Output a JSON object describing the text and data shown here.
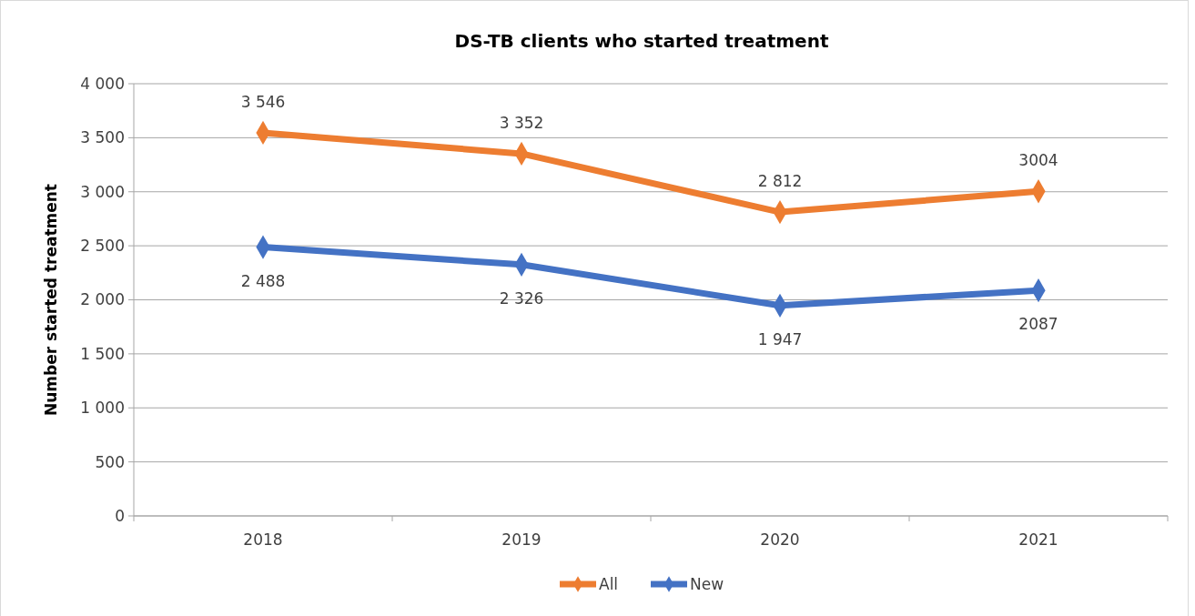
{
  "chart_data": {
    "type": "line",
    "title": "DS-TB clients who started treatment",
    "ylabel": "Number started treatment",
    "categories": [
      "2018",
      "2019",
      "2020",
      "2021"
    ],
    "series": [
      {
        "name": "All",
        "color": "#ed7d31",
        "values": [
          3546,
          3352,
          2812,
          3004
        ],
        "value_labels": [
          "3 546",
          "3 352",
          "2 812",
          "3004"
        ]
      },
      {
        "name": "New",
        "color": "#4472c4",
        "values": [
          2488,
          2326,
          1947,
          2087
        ],
        "value_labels": [
          "2 488",
          "2 326",
          "1 947",
          "2087"
        ]
      }
    ],
    "ylim": [
      0,
      4000
    ],
    "yticks": [
      0,
      {
        "value": 500,
        "label": "500"
      },
      {
        "value": 1000,
        "label": "1 000"
      },
      {
        "value": 1500,
        "label": "1 500"
      },
      {
        "value": 2000,
        "label": "2 000"
      },
      {
        "value": 2500,
        "label": "2 500"
      },
      {
        "value": 3000,
        "label": "3 000"
      },
      {
        "value": 3500,
        "label": "3 500"
      },
      {
        "value": 4000,
        "label": "4 000"
      }
    ],
    "grid": "y",
    "legend": "bottom",
    "marker": "diamond",
    "line_style": "solid"
  }
}
